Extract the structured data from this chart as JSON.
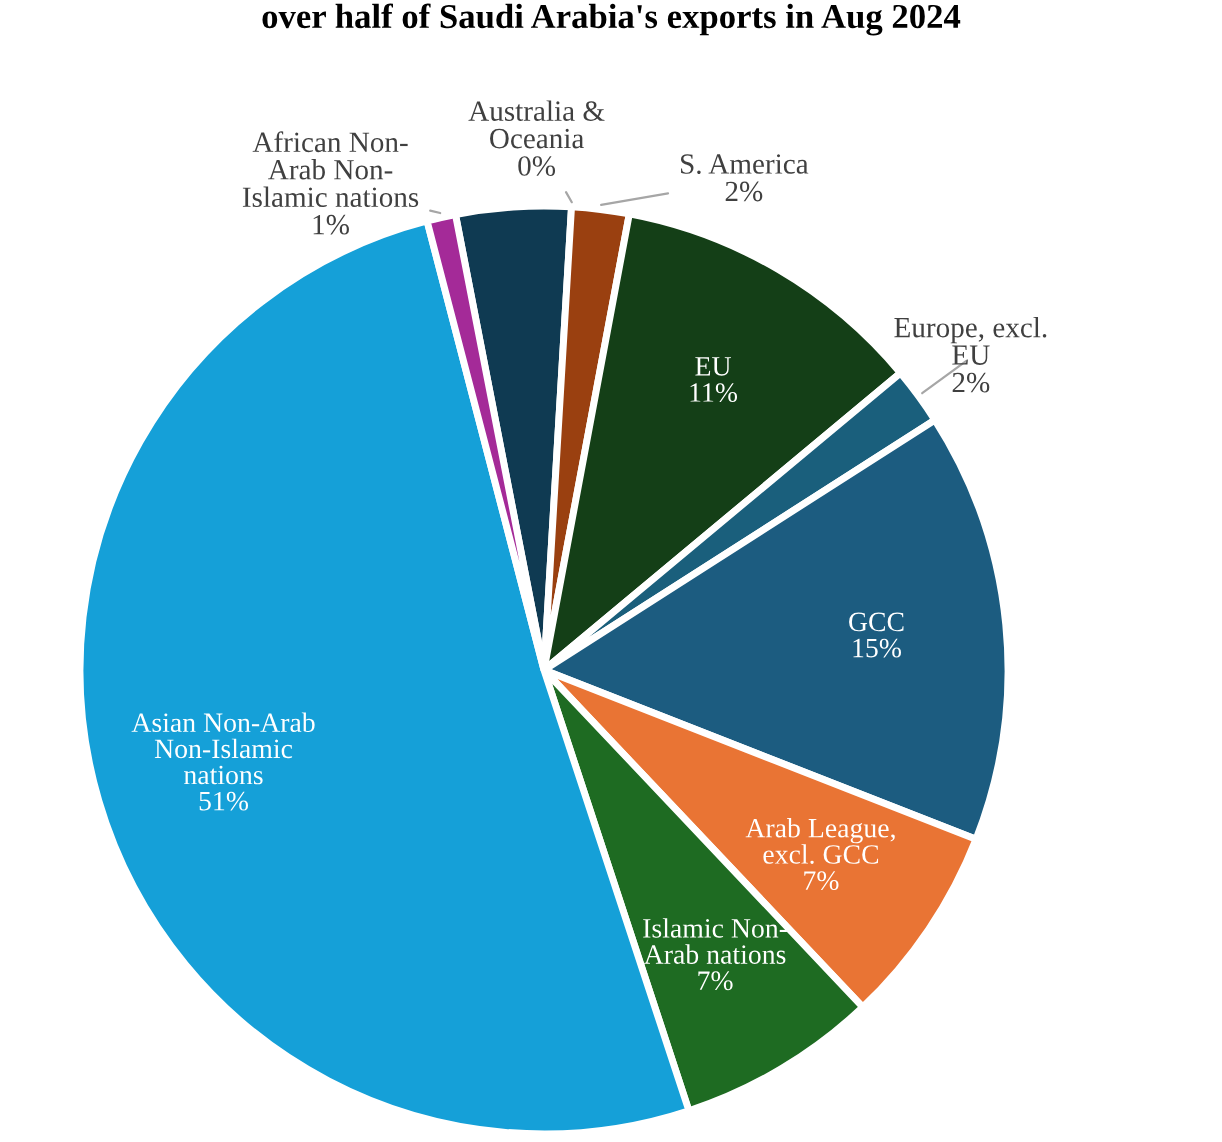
{
  "chart_data": {
    "type": "pie",
    "title": "over half of Saudi Arabia's exports in Aug 2024",
    "categories": [
      null,
      "Australia & Oceania",
      "S. America",
      "EU",
      "Europe, excl. EU",
      "GCC",
      "Arab League, excl. GCC",
      "Islamic Non-Arab nations",
      "Asian Non-Arab Non-Islamic nations",
      "African Non-Arab Non-Islamic nations"
    ],
    "values": [
      4,
      0,
      2,
      11,
      2,
      15,
      7,
      7,
      51,
      1
    ],
    "value_labels": [
      null,
      "0%",
      "2%",
      "11%",
      "2%",
      "15%",
      "7%",
      "7%",
      "51%",
      "1%"
    ],
    "colors": [
      "#0f3a52",
      "#0f3a52",
      "#9a4010",
      "#143f17",
      "#1a5f7c",
      "#1c5c80",
      "#e97434",
      "#1e6b22",
      "#15a0d8",
      "#a42a98"
    ]
  }
}
